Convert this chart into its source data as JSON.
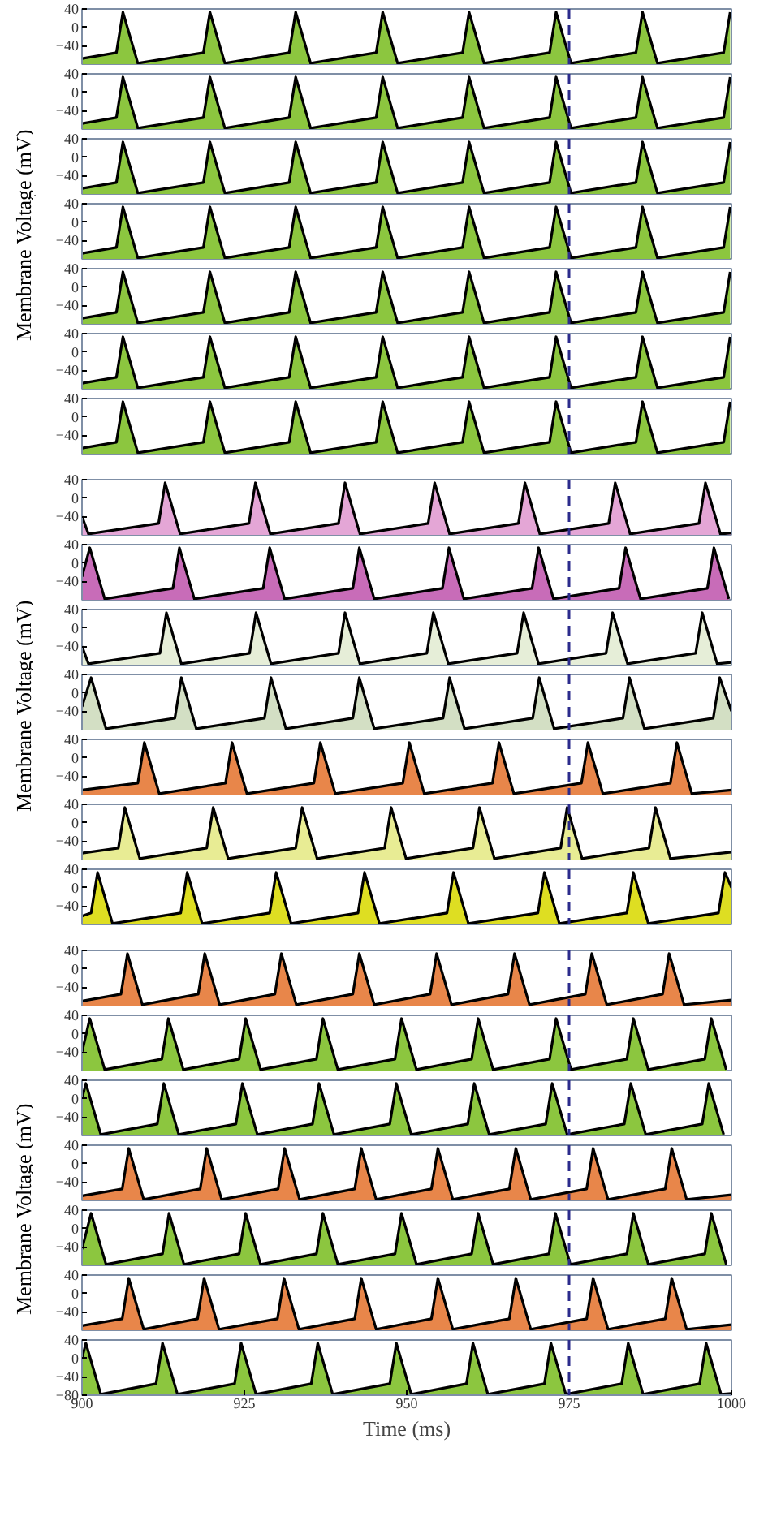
{
  "chart_data": [
    {
      "type": "area",
      "ylabel": "Membrane Voltage (mV)",
      "color": "#8cc63f",
      "xlim": [
        900,
        1000
      ],
      "ylim": [
        -80,
        40
      ],
      "xticks": [
        900,
        925,
        950,
        975,
        1000
      ],
      "yticks": [
        -40,
        0,
        40
      ],
      "tick_labels": "y",
      "ref_lines": [
        {
          "axis": "x",
          "value": 975,
          "color": "#2b2b8c",
          "line_style": "dashed"
        }
      ],
      "x": [
        900,
        905.3,
        906.3,
        908.6,
        918.7,
        919.7,
        922.0,
        931.9,
        932.9,
        935.2,
        945.3,
        946.3,
        948.6,
        958.6,
        959.6,
        961.9,
        972.0,
        973.0,
        975.3,
        985.3,
        986.3,
        988.6,
        998.8,
        999.8
      ],
      "values": [
        -68,
        -55,
        33,
        -78,
        -55,
        33,
        -78,
        -55,
        33,
        -78,
        -55,
        33,
        -78,
        -55,
        33,
        -78,
        -55,
        33,
        -78,
        -55,
        33,
        -78,
        -55,
        33
      ]
    },
    {
      "type": "area",
      "color": "#8cc63f",
      "xlim": [
        900,
        1000
      ],
      "ylim": [
        -80,
        40
      ],
      "xticks": [
        900,
        925,
        950,
        975,
        1000
      ],
      "yticks": [
        -40,
        0,
        40
      ],
      "tick_labels": "y",
      "ref_lines": [
        {
          "axis": "x",
          "value": 975,
          "color": "#2b2b8c",
          "line_style": "dashed"
        }
      ],
      "x": [
        900,
        905.3,
        906.3,
        908.6,
        918.7,
        919.7,
        922.0,
        931.9,
        932.9,
        935.2,
        945.3,
        946.3,
        948.6,
        958.6,
        959.6,
        961.9,
        972.0,
        973.0,
        975.3,
        985.3,
        986.3,
        988.6,
        998.8,
        999.8
      ],
      "values": [
        -68,
        -55,
        33,
        -78,
        -55,
        33,
        -78,
        -55,
        33,
        -78,
        -55,
        33,
        -78,
        -55,
        33,
        -78,
        -55,
        33,
        -78,
        -55,
        33,
        -78,
        -55,
        33
      ]
    },
    {
      "type": "area",
      "color": "#8cc63f",
      "xlim": [
        900,
        1000
      ],
      "ylim": [
        -80,
        40
      ],
      "xticks": [
        900,
        925,
        950,
        975,
        1000
      ],
      "yticks": [
        -40,
        0,
        40
      ],
      "tick_labels": "y",
      "ref_lines": [
        {
          "axis": "x",
          "value": 975,
          "color": "#2b2b8c",
          "line_style": "dashed"
        }
      ],
      "x": [
        900,
        905.3,
        906.3,
        908.6,
        918.7,
        919.7,
        922.0,
        931.9,
        932.9,
        935.2,
        945.3,
        946.3,
        948.6,
        958.6,
        959.6,
        961.9,
        972.0,
        973.0,
        975.3,
        985.3,
        986.3,
        988.6,
        998.8,
        999.8
      ],
      "values": [
        -68,
        -55,
        33,
        -78,
        -55,
        33,
        -78,
        -55,
        33,
        -78,
        -55,
        33,
        -78,
        -55,
        33,
        -78,
        -55,
        33,
        -78,
        -55,
        33,
        -78,
        -55,
        33
      ]
    },
    {
      "type": "area",
      "color": "#8cc63f",
      "xlim": [
        900,
        1000
      ],
      "ylim": [
        -80,
        40
      ],
      "xticks": [
        900,
        925,
        950,
        975,
        1000
      ],
      "yticks": [
        -40,
        0,
        40
      ],
      "tick_labels": "y",
      "ref_lines": [
        {
          "axis": "x",
          "value": 975,
          "color": "#2b2b8c",
          "line_style": "dashed"
        }
      ],
      "x": [
        900,
        905.3,
        906.3,
        908.6,
        918.7,
        919.7,
        922.0,
        931.9,
        932.9,
        935.2,
        945.3,
        946.3,
        948.6,
        958.6,
        959.6,
        961.9,
        972.0,
        973.0,
        975.3,
        985.3,
        986.3,
        988.6,
        998.8,
        999.8
      ],
      "values": [
        -68,
        -55,
        33,
        -78,
        -55,
        33,
        -78,
        -55,
        33,
        -78,
        -55,
        33,
        -78,
        -55,
        33,
        -78,
        -55,
        33,
        -78,
        -55,
        33,
        -78,
        -55,
        33
      ]
    },
    {
      "type": "area",
      "color": "#8cc63f",
      "xlim": [
        900,
        1000
      ],
      "ylim": [
        -80,
        40
      ],
      "xticks": [
        900,
        925,
        950,
        975,
        1000
      ],
      "yticks": [
        -40,
        0,
        40
      ],
      "tick_labels": "y",
      "ref_lines": [
        {
          "axis": "x",
          "value": 975,
          "color": "#2b2b8c",
          "line_style": "dashed"
        }
      ],
      "x": [
        900,
        905.3,
        906.3,
        908.6,
        918.7,
        919.7,
        922.0,
        931.9,
        932.9,
        935.2,
        945.3,
        946.3,
        948.6,
        958.6,
        959.6,
        961.9,
        972.0,
        973.0,
        975.3,
        985.3,
        986.3,
        988.6,
        998.8,
        999.8
      ],
      "values": [
        -68,
        -55,
        33,
        -78,
        -55,
        33,
        -78,
        -55,
        33,
        -78,
        -55,
        33,
        -78,
        -55,
        33,
        -78,
        -55,
        33,
        -78,
        -55,
        33,
        -78,
        -55,
        33
      ]
    },
    {
      "type": "area",
      "color": "#8cc63f",
      "xlim": [
        900,
        1000
      ],
      "ylim": [
        -80,
        40
      ],
      "xticks": [
        900,
        925,
        950,
        975,
        1000
      ],
      "yticks": [
        -40,
        0,
        40
      ],
      "tick_labels": "y",
      "ref_lines": [
        {
          "axis": "x",
          "value": 975,
          "color": "#2b2b8c",
          "line_style": "dashed"
        }
      ],
      "x": [
        900,
        905.3,
        906.3,
        908.6,
        918.7,
        919.7,
        922.0,
        931.9,
        932.9,
        935.2,
        945.3,
        946.3,
        948.6,
        958.6,
        959.6,
        961.9,
        972.0,
        973.0,
        975.3,
        985.3,
        986.3,
        988.6,
        998.8,
        999.8
      ],
      "values": [
        -68,
        -55,
        33,
        -78,
        -55,
        33,
        -78,
        -55,
        33,
        -78,
        -55,
        33,
        -78,
        -55,
        33,
        -78,
        -55,
        33,
        -78,
        -55,
        33,
        -78,
        -55,
        33
      ]
    },
    {
      "type": "area",
      "color": "#8cc63f",
      "xlim": [
        900,
        1000
      ],
      "ylim": [
        -80,
        40
      ],
      "xticks": [
        900,
        925,
        950,
        975,
        1000
      ],
      "yticks": [
        -40,
        0,
        40
      ],
      "tick_labels": "y",
      "ref_lines": [
        {
          "axis": "x",
          "value": 975,
          "color": "#2b2b8c",
          "line_style": "dashed"
        }
      ],
      "x": [
        900,
        905.3,
        906.3,
        908.6,
        918.7,
        919.7,
        922.0,
        931.9,
        932.9,
        935.2,
        945.3,
        946.3,
        948.6,
        958.6,
        959.6,
        961.9,
        972.0,
        973.0,
        975.3,
        985.3,
        986.3,
        988.6,
        998.8,
        999.8
      ],
      "values": [
        -68,
        -55,
        33,
        -78,
        -55,
        33,
        -78,
        -55,
        33,
        -78,
        -55,
        33,
        -78,
        -55,
        33,
        -78,
        -55,
        33,
        -78,
        -55,
        33,
        -78,
        -55,
        33
      ]
    },
    {
      "type": "area",
      "ylabel": "Membrane Voltage (mV)",
      "color": "#e4a6d6",
      "xlim": [
        900,
        1000
      ],
      "ylim": [
        -80,
        40
      ],
      "xticks": [
        900,
        925,
        950,
        975,
        1000
      ],
      "yticks": [
        -40,
        0,
        40
      ],
      "tick_labels": "y",
      "ref_lines": [
        {
          "axis": "x",
          "value": 975,
          "color": "#2b2b8c",
          "line_style": "dashed"
        }
      ],
      "x": [
        900,
        901,
        911.8,
        912.8,
        915.1,
        925.7,
        926.7,
        929.0,
        939.5,
        940.5,
        942.8,
        953.3,
        954.3,
        956.6,
        967.2,
        968.2,
        970.5,
        981.1,
        982.1,
        984.4,
        995.0,
        996.0,
        998.3,
        1000
      ],
      "values": [
        -40,
        -78,
        -55,
        33,
        -78,
        -55,
        33,
        -78,
        -55,
        33,
        -78,
        -55,
        33,
        -78,
        -55,
        33,
        -78,
        -55,
        33,
        -78,
        -55,
        33,
        -78,
        -76
      ]
    },
    {
      "type": "area",
      "color": "#c86cb8",
      "xlim": [
        900,
        1000
      ],
      "ylim": [
        -80,
        40
      ],
      "xticks": [
        900,
        925,
        950,
        975,
        1000
      ],
      "yticks": [
        -40,
        0,
        40
      ],
      "tick_labels": "y",
      "ref_lines": [
        {
          "axis": "x",
          "value": 975,
          "color": "#2b2b8c",
          "line_style": "dashed"
        }
      ],
      "x": [
        900,
        901.2,
        903.5,
        914.0,
        915.0,
        917.3,
        927.9,
        928.9,
        931.2,
        941.7,
        942.7,
        945.0,
        955.5,
        956.5,
        958.8,
        969.3,
        970.3,
        972.6,
        982.7,
        983.7,
        986.0,
        996.3,
        997.3,
        999.6
      ],
      "values": [
        -30,
        33,
        -78,
        -55,
        33,
        -78,
        -55,
        33,
        -78,
        -55,
        33,
        -78,
        -55,
        33,
        -78,
        -55,
        33,
        -78,
        -55,
        33,
        -78,
        -55,
        33,
        -78
      ]
    },
    {
      "type": "area",
      "color": "#e6eed8",
      "xlim": [
        900,
        1000
      ],
      "ylim": [
        -80,
        40
      ],
      "xticks": [
        900,
        925,
        950,
        975,
        1000
      ],
      "yticks": [
        -40,
        0,
        40
      ],
      "tick_labels": "y",
      "ref_lines": [
        {
          "axis": "x",
          "value": 975,
          "color": "#2b2b8c",
          "line_style": "dashed"
        }
      ],
      "x": [
        900,
        901,
        912.0,
        913.0,
        915.3,
        925.8,
        926.8,
        929.1,
        939.5,
        940.5,
        942.8,
        953.1,
        954.1,
        956.4,
        967.0,
        968.0,
        970.3,
        980.7,
        981.7,
        984.0,
        994.5,
        995.5,
        997.8,
        1000
      ],
      "values": [
        -40,
        -78,
        -55,
        33,
        -78,
        -55,
        33,
        -78,
        -55,
        33,
        -78,
        -55,
        33,
        -78,
        -55,
        33,
        -78,
        -55,
        33,
        -78,
        -55,
        33,
        -78,
        -75
      ]
    },
    {
      "type": "area",
      "color": "#d3dfc4",
      "xlim": [
        900,
        1000
      ],
      "ylim": [
        -80,
        40
      ],
      "xticks": [
        900,
        925,
        950,
        975,
        1000
      ],
      "yticks": [
        -40,
        0,
        40
      ],
      "tick_labels": "y",
      "ref_lines": [
        {
          "axis": "x",
          "value": 975,
          "color": "#2b2b8c",
          "line_style": "dashed"
        }
      ],
      "x": [
        900,
        901.4,
        903.7,
        914.3,
        915.3,
        917.6,
        928.1,
        929.1,
        931.4,
        941.7,
        942.7,
        945.0,
        955.6,
        956.6,
        958.9,
        969.4,
        970.4,
        972.7,
        983.3,
        984.3,
        986.6,
        997.2,
        998.2,
        1000
      ],
      "values": [
        -30,
        33,
        -78,
        -55,
        33,
        -78,
        -55,
        33,
        -78,
        -55,
        33,
        -78,
        -55,
        33,
        -78,
        -55,
        33,
        -78,
        -55,
        33,
        -78,
        -55,
        33,
        -40
      ]
    },
    {
      "type": "area",
      "color": "#e8864a",
      "xlim": [
        900,
        1000
      ],
      "ylim": [
        -80,
        40
      ],
      "xticks": [
        900,
        925,
        950,
        975,
        1000
      ],
      "yticks": [
        -40,
        0,
        40
      ],
      "tick_labels": "y",
      "ref_lines": [
        {
          "axis": "x",
          "value": 975,
          "color": "#2b2b8c",
          "line_style": "dashed"
        }
      ],
      "x": [
        900,
        908.6,
        909.6,
        911.9,
        922.1,
        923.1,
        925.4,
        935.7,
        936.7,
        939.0,
        949.4,
        950.4,
        952.7,
        963.2,
        964.2,
        966.5,
        976.9,
        977.9,
        980.2,
        990.6,
        991.6,
        993.9,
        1000
      ],
      "values": [
        -70,
        -55,
        33,
        -78,
        -55,
        33,
        -78,
        -55,
        33,
        -78,
        -55,
        33,
        -78,
        -55,
        33,
        -78,
        -55,
        33,
        -78,
        -55,
        33,
        -78,
        -70
      ]
    },
    {
      "type": "area",
      "color": "#e8ec94",
      "xlim": [
        900,
        1000
      ],
      "ylim": [
        -80,
        40
      ],
      "xticks": [
        900,
        925,
        950,
        975,
        1000
      ],
      "yticks": [
        -40,
        0,
        40
      ],
      "tick_labels": "y",
      "ref_lines": [
        {
          "axis": "x",
          "value": 975,
          "color": "#2b2b8c",
          "line_style": "dashed"
        }
      ],
      "x": [
        900,
        905.6,
        906.6,
        908.9,
        919.2,
        920.2,
        922.5,
        932.9,
        933.9,
        936.2,
        946.6,
        947.6,
        949.9,
        960.2,
        961.2,
        963.5,
        973.7,
        974.7,
        977.0,
        987.3,
        988.3,
        990.6,
        1000
      ],
      "values": [
        -66,
        -55,
        33,
        -78,
        -55,
        33,
        -78,
        -55,
        33,
        -78,
        -55,
        33,
        -78,
        -55,
        33,
        -78,
        -55,
        33,
        -78,
        -55,
        33,
        -78,
        -64
      ]
    },
    {
      "type": "area",
      "color": "#dede22",
      "xlim": [
        900,
        1000
      ],
      "ylim": [
        -80,
        40
      ],
      "xticks": [
        900,
        925,
        950,
        975,
        1000
      ],
      "yticks": [
        -40,
        0,
        40
      ],
      "tick_labels": "y",
      "ref_lines": [
        {
          "axis": "x",
          "value": 975,
          "color": "#2b2b8c",
          "line_style": "dashed"
        }
      ],
      "x": [
        900,
        901.4,
        902.4,
        904.7,
        915.2,
        916.2,
        918.5,
        928.9,
        929.9,
        932.2,
        942.5,
        943.5,
        945.8,
        956.2,
        957.2,
        959.5,
        970.2,
        971.2,
        973.5,
        983.9,
        984.9,
        987.2,
        998.0,
        999.0,
        1000
      ],
      "values": [
        -62,
        -55,
        33,
        -78,
        -55,
        33,
        -78,
        -55,
        33,
        -78,
        -55,
        33,
        -78,
        -55,
        33,
        -78,
        -55,
        33,
        -78,
        -55,
        33,
        -78,
        -55,
        33,
        0
      ]
    },
    {
      "type": "area",
      "ylabel": "Membrane Voltage (mV)",
      "color": "#e8864a",
      "xlim": [
        900,
        1000
      ],
      "ylim": [
        -80,
        40
      ],
      "xticks": [
        900,
        925,
        950,
        975,
        1000
      ],
      "yticks": [
        -40,
        0,
        40
      ],
      "tick_labels": "y",
      "ref_lines": [
        {
          "axis": "x",
          "value": 975,
          "color": "#2b2b8c",
          "line_style": "dashed"
        }
      ],
      "x": [
        900,
        906.0,
        907.0,
        909.3,
        917.9,
        918.9,
        921.2,
        929.7,
        930.7,
        933.0,
        941.7,
        942.7,
        945.0,
        953.6,
        954.6,
        956.9,
        965.6,
        966.6,
        968.9,
        977.5,
        978.5,
        980.8,
        989.4,
        990.4,
        992.7,
        1000
      ],
      "values": [
        -70,
        -55,
        33,
        -78,
        -55,
        33,
        -78,
        -55,
        33,
        -78,
        -55,
        33,
        -78,
        -55,
        33,
        -78,
        -55,
        33,
        -78,
        -55,
        33,
        -78,
        -55,
        33,
        -78,
        -68
      ]
    },
    {
      "type": "area",
      "color": "#8cc63f",
      "xlim": [
        900,
        1000
      ],
      "ylim": [
        -80,
        40
      ],
      "xticks": [
        900,
        925,
        950,
        975,
        1000
      ],
      "yticks": [
        -40,
        0,
        40
      ],
      "tick_labels": "y",
      "ref_lines": [
        {
          "axis": "x",
          "value": 975,
          "color": "#2b2b8c",
          "line_style": "dashed"
        }
      ],
      "x": [
        900,
        901.2,
        903.5,
        912.3,
        913.3,
        915.6,
        924.2,
        925.2,
        927.5,
        936.1,
        937.1,
        939.4,
        948.2,
        949.2,
        951.5,
        960.0,
        961.0,
        963.3,
        972.0,
        973.0,
        975.3,
        983.9,
        984.9,
        987.2,
        995.9,
        996.9,
        999.2
      ],
      "values": [
        -40,
        33,
        -78,
        -55,
        33,
        -78,
        -55,
        33,
        -78,
        -55,
        33,
        -78,
        -55,
        33,
        -78,
        -55,
        33,
        -78,
        -55,
        33,
        -78,
        -55,
        33,
        -78,
        -55,
        33,
        -78
      ]
    },
    {
      "type": "area",
      "color": "#8cc63f",
      "xlim": [
        900,
        1000
      ],
      "ylim": [
        -80,
        40
      ],
      "xticks": [
        900,
        925,
        950,
        975,
        1000
      ],
      "yticks": [
        -40,
        0,
        40
      ],
      "tick_labels": "y",
      "ref_lines": [
        {
          "axis": "x",
          "value": 975,
          "color": "#2b2b8c",
          "line_style": "dashed"
        }
      ],
      "x": [
        900,
        900.6,
        902.9,
        911.6,
        912.6,
        914.9,
        923.7,
        924.7,
        927.0,
        935.5,
        936.5,
        938.8,
        947.4,
        948.4,
        950.7,
        959.4,
        960.4,
        962.7,
        971.4,
        972.4,
        974.7,
        983.5,
        984.5,
        986.8,
        995.5,
        996.5,
        998.8
      ],
      "values": [
        0,
        33,
        -78,
        -55,
        33,
        -78,
        -55,
        33,
        -78,
        -55,
        33,
        -78,
        -55,
        33,
        -78,
        -55,
        33,
        -78,
        -55,
        33,
        -78,
        -55,
        33,
        -78,
        -55,
        33,
        -78
      ]
    },
    {
      "type": "area",
      "color": "#e8864a",
      "xlim": [
        900,
        1000
      ],
      "ylim": [
        -80,
        40
      ],
      "xticks": [
        900,
        925,
        950,
        975,
        1000
      ],
      "yticks": [
        -40,
        0,
        40
      ],
      "tick_labels": "y",
      "ref_lines": [
        {
          "axis": "x",
          "value": 975,
          "color": "#2b2b8c",
          "line_style": "dashed"
        }
      ],
      "x": [
        900,
        906.2,
        907.2,
        909.5,
        918.2,
        919.2,
        921.5,
        930.2,
        931.2,
        933.5,
        942.0,
        943.0,
        945.3,
        953.8,
        954.8,
        957.1,
        965.8,
        966.8,
        969.1,
        977.7,
        978.7,
        981.0,
        989.8,
        990.8,
        993.1,
        1000
      ],
      "values": [
        -70,
        -55,
        33,
        -78,
        -55,
        33,
        -78,
        -55,
        33,
        -78,
        -55,
        33,
        -78,
        -55,
        33,
        -78,
        -55,
        33,
        -78,
        -55,
        33,
        -78,
        -55,
        33,
        -78,
        -68
      ]
    },
    {
      "type": "area",
      "color": "#8cc63f",
      "xlim": [
        900,
        1000
      ],
      "ylim": [
        -80,
        40
      ],
      "xticks": [
        900,
        925,
        950,
        975,
        1000
      ],
      "yticks": [
        -40,
        0,
        40
      ],
      "tick_labels": "y",
      "ref_lines": [
        {
          "axis": "x",
          "value": 975,
          "color": "#2b2b8c",
          "line_style": "dashed"
        }
      ],
      "x": [
        900,
        901.4,
        903.7,
        912.4,
        913.4,
        915.7,
        924.2,
        925.2,
        927.5,
        936.1,
        937.1,
        939.4,
        948.2,
        949.2,
        951.5,
        960.0,
        961.0,
        963.3,
        971.9,
        972.9,
        975.2,
        983.9,
        984.9,
        987.2,
        995.9,
        996.9,
        999.2
      ],
      "values": [
        -45,
        33,
        -78,
        -55,
        33,
        -78,
        -55,
        33,
        -78,
        -55,
        33,
        -78,
        -55,
        33,
        -78,
        -55,
        33,
        -78,
        -55,
        33,
        -78,
        -55,
        33,
        -78,
        -55,
        33,
        -78
      ]
    },
    {
      "type": "area",
      "color": "#e8864a",
      "xlim": [
        900,
        1000
      ],
      "ylim": [
        -80,
        40
      ],
      "xticks": [
        900,
        925,
        950,
        975,
        1000
      ],
      "yticks": [
        -40,
        0,
        40
      ],
      "tick_labels": "y",
      "ref_lines": [
        {
          "axis": "x",
          "value": 975,
          "color": "#2b2b8c",
          "line_style": "dashed"
        }
      ],
      "x": [
        900,
        906.2,
        907.2,
        909.5,
        917.8,
        918.8,
        921.1,
        930.1,
        931.1,
        933.4,
        942.0,
        943.0,
        945.3,
        953.8,
        954.8,
        957.1,
        965.8,
        966.8,
        969.1,
        977.7,
        978.7,
        981.0,
        989.8,
        990.8,
        993.1,
        1000
      ],
      "values": [
        -70,
        -55,
        33,
        -78,
        -55,
        33,
        -78,
        -55,
        33,
        -78,
        -55,
        33,
        -78,
        -55,
        33,
        -78,
        -55,
        33,
        -78,
        -55,
        33,
        -78,
        -55,
        33,
        -78,
        -68
      ]
    },
    {
      "type": "area",
      "xlabel": "Time (ms)",
      "color": "#8cc63f",
      "xlim": [
        900,
        1000
      ],
      "ylim": [
        -80,
        40
      ],
      "xticks": [
        900,
        925,
        950,
        975,
        1000
      ],
      "yticks": [
        -80,
        -40,
        0,
        40
      ],
      "ref_lines": [
        {
          "axis": "x",
          "value": 975,
          "color": "#2b2b8c",
          "line_style": "dashed"
        }
      ],
      "x": [
        900,
        900.6,
        902.9,
        911.4,
        912.4,
        914.7,
        923.5,
        924.5,
        926.8,
        935.3,
        936.3,
        938.6,
        947.4,
        948.4,
        950.7,
        959.2,
        960.2,
        962.5,
        971.2,
        972.2,
        974.5,
        983.1,
        984.1,
        986.4,
        995.1,
        996.1,
        998.4,
        1000
      ],
      "values": [
        0,
        33,
        -78,
        -55,
        33,
        -78,
        -55,
        33,
        -78,
        -55,
        33,
        -78,
        -55,
        33,
        -78,
        -55,
        33,
        -78,
        -55,
        33,
        -78,
        -55,
        33,
        -78,
        -55,
        33,
        -78,
        -76
      ]
    }
  ]
}
